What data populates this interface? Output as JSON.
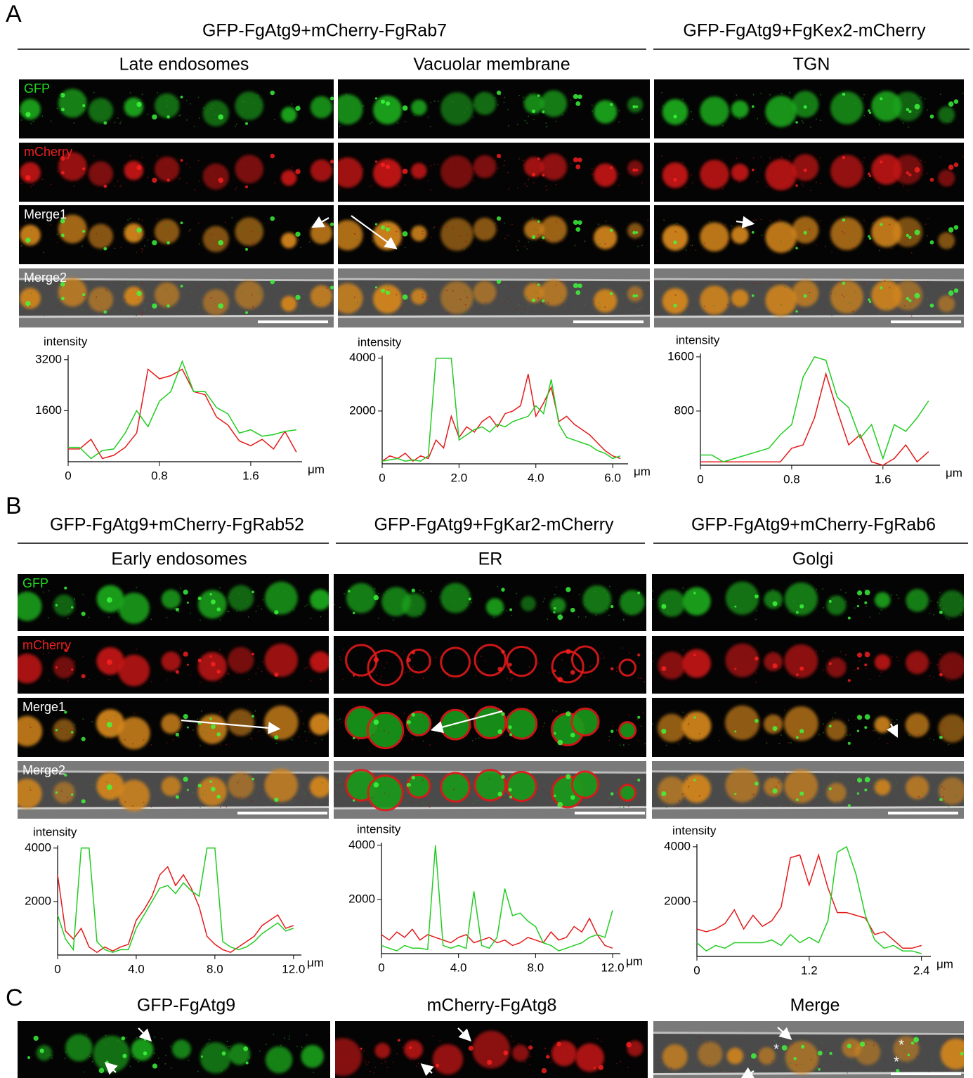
{
  "panels": [
    {
      "label": "A",
      "groups": [
        {
          "title": "GFP-FgAtg9+mCherry-FgRab7"
        },
        {
          "title": "GFP-FgAtg9+FgKex2-mCherry"
        }
      ],
      "columns": [
        "Late endosomes",
        "Vacuolar membrane",
        "TGN"
      ],
      "channels": [
        "GFP",
        "mCherry",
        "Merge1",
        "Merge2"
      ]
    },
    {
      "label": "B",
      "groups": [
        {
          "title": "GFP-FgAtg9+mCherry-FgRab52"
        },
        {
          "title": "GFP-FgAtg9+FgKar2-mCherry"
        },
        {
          "title": "GFP-FgAtg9+mCherry-FgRab6"
        }
      ],
      "columns": [
        "Early endosomes",
        "ER",
        "Golgi"
      ],
      "channels": [
        "GFP",
        "mCherry",
        "Merge1",
        "Merge2"
      ]
    },
    {
      "label": "C",
      "columns": [
        "GFP-FgAtg9",
        "mCherry-FgAtg8",
        "Merge"
      ],
      "asterisks": [
        "*",
        "*",
        "*"
      ]
    }
  ],
  "chart_data": [
    {
      "type": "line",
      "y_label": "intensity",
      "x_label": "μm",
      "x": [
        0,
        0.1,
        0.2,
        0.3,
        0.4,
        0.5,
        0.6,
        0.7,
        0.8,
        0.9,
        1.0,
        1.1,
        1.2,
        1.3,
        1.4,
        1.5,
        1.6,
        1.7,
        1.8,
        1.9,
        2.0
      ],
      "series": [
        {
          "color": "#e41a1a",
          "values": [
            400,
            400,
            700,
            100,
            200,
            450,
            900,
            2900,
            2600,
            2700,
            2900,
            2200,
            2100,
            1400,
            1150,
            650,
            500,
            700,
            400,
            950,
            300
          ]
        },
        {
          "color": "#22cc22",
          "values": [
            450,
            450,
            100,
            350,
            400,
            900,
            1600,
            1100,
            1900,
            2200,
            3150,
            2200,
            2200,
            1700,
            1500,
            900,
            1000,
            800,
            850,
            950,
            1000
          ]
        }
      ],
      "xlim": [
        0,
        2.05
      ],
      "ylim": [
        0,
        3350
      ],
      "xticks": [
        0,
        0.8,
        1.6
      ],
      "yticks": [
        1600,
        3200
      ]
    },
    {
      "type": "line",
      "y_label": "intensity",
      "x_label": "μm",
      "x": [
        0,
        0.2,
        0.4,
        0.6,
        0.8,
        1.0,
        1.2,
        1.4,
        1.6,
        1.8,
        2.0,
        2.2,
        2.4,
        2.6,
        2.8,
        3.0,
        3.2,
        3.4,
        3.6,
        3.8,
        4.0,
        4.2,
        4.4,
        4.6,
        4.8,
        5.0,
        5.2,
        5.4,
        5.6,
        5.8,
        6.0,
        6.2
      ],
      "series": [
        {
          "color": "#e41a1a",
          "values": [
            100,
            300,
            200,
            400,
            100,
            300,
            200,
            900,
            600,
            1800,
            1000,
            1400,
            1200,
            1600,
            1800,
            1400,
            1900,
            2000,
            2200,
            3400,
            1800,
            2300,
            2900,
            1600,
            1800,
            1500,
            1300,
            1100,
            800,
            500,
            300,
            200
          ]
        },
        {
          "color": "#22cc22",
          "values": [
            100,
            150,
            200,
            100,
            150,
            100,
            300,
            4000,
            4000,
            4000,
            900,
            1100,
            1300,
            1400,
            1200,
            1500,
            1400,
            1600,
            1700,
            1800,
            2200,
            1900,
            3200,
            1500,
            1000,
            900,
            800,
            700,
            500,
            400,
            200,
            300
          ]
        }
      ],
      "xlim": [
        0,
        6.4
      ],
      "ylim": [
        0,
        4100
      ],
      "xticks": [
        0,
        {
          "value": 2,
          "label": "2.0"
        },
        {
          "value": 4,
          "label": "4.0"
        },
        {
          "value": 6,
          "label": "6.0"
        }
      ],
      "yticks": [
        2000,
        4000
      ]
    },
    {
      "type": "line",
      "y_label": "intensity",
      "x_label": "μm",
      "x": [
        0,
        0.1,
        0.2,
        0.3,
        0.4,
        0.5,
        0.6,
        0.7,
        0.8,
        0.9,
        1.0,
        1.1,
        1.2,
        1.3,
        1.4,
        1.5,
        1.6,
        1.7,
        1.8,
        1.9,
        2.0
      ],
      "series": [
        {
          "color": "#e41a1a",
          "values": [
            50,
            50,
            50,
            50,
            50,
            50,
            50,
            50,
            250,
            300,
            700,
            1350,
            800,
            300,
            450,
            50,
            0,
            100,
            300,
            50,
            200
          ]
        },
        {
          "color": "#22cc22",
          "values": [
            150,
            150,
            50,
            100,
            150,
            200,
            250,
            450,
            600,
            1300,
            1600,
            1550,
            1000,
            850,
            400,
            600,
            100,
            600,
            500,
            700,
            950
          ]
        }
      ],
      "xlim": [
        0,
        2.1
      ],
      "ylim": [
        0,
        1650
      ],
      "xticks": [
        0,
        0.8,
        1.6
      ],
      "yticks": [
        800,
        1600
      ]
    },
    {
      "type": "line",
      "y_label": "intensity",
      "x_label": "μm",
      "x": [
        0,
        0.4,
        0.8,
        1.2,
        1.6,
        2.0,
        2.4,
        2.8,
        3.2,
        3.6,
        4.0,
        4.4,
        4.8,
        5.2,
        5.6,
        6.0,
        6.4,
        6.8,
        7.2,
        7.6,
        8.0,
        8.4,
        8.8,
        9.2,
        9.6,
        10.0,
        10.4,
        10.8,
        11.2,
        11.6,
        12.0
      ],
      "series": [
        {
          "color": "#e41a1a",
          "values": [
            3000,
            900,
            600,
            1000,
            300,
            100,
            300,
            150,
            300,
            400,
            1300,
            1700,
            2200,
            3000,
            3300,
            2600,
            3000,
            2500,
            1800,
            700,
            400,
            200,
            100,
            300,
            500,
            700,
            1100,
            1300,
            1500,
            1000,
            1100
          ]
        },
        {
          "color": "#22cc22",
          "values": [
            1500,
            600,
            200,
            4000,
            4000,
            500,
            200,
            100,
            200,
            200,
            1000,
            1500,
            2000,
            2500,
            2600,
            2300,
            2700,
            2400,
            2200,
            4000,
            4000,
            500,
            300,
            200,
            300,
            500,
            800,
            1000,
            1200,
            900,
            1000
          ]
        }
      ],
      "xlim": [
        0,
        12.4
      ],
      "ylim": [
        0,
        4100
      ],
      "xticks": [
        0,
        {
          "value": 4,
          "label": "4.0"
        },
        {
          "value": 8,
          "label": "8.0"
        },
        {
          "value": 12,
          "label": "12.0"
        }
      ],
      "yticks": [
        2000,
        4000
      ]
    },
    {
      "type": "line",
      "y_label": "intensity",
      "x_label": "μm",
      "x": [
        0,
        0.4,
        0.8,
        1.2,
        1.6,
        2.0,
        2.4,
        2.8,
        3.2,
        3.6,
        4.0,
        4.4,
        4.8,
        5.2,
        5.6,
        6.0,
        6.4,
        6.8,
        7.2,
        7.6,
        8.0,
        8.4,
        8.8,
        9.2,
        9.6,
        10.0,
        10.4,
        10.8,
        11.2,
        11.6,
        12.0
      ],
      "series": [
        {
          "color": "#e41a1a",
          "values": [
            700,
            500,
            800,
            600,
            900,
            500,
            700,
            600,
            500,
            400,
            600,
            700,
            400,
            500,
            600,
            400,
            500,
            300,
            400,
            600,
            500,
            400,
            800,
            500,
            600,
            1000,
            800,
            1300,
            700,
            300,
            200
          ]
        },
        {
          "color": "#22cc22",
          "values": [
            300,
            200,
            100,
            300,
            200,
            200,
            150,
            4000,
            300,
            200,
            300,
            200,
            2300,
            300,
            200,
            600,
            2400,
            1400,
            1500,
            1200,
            1000,
            400,
            300,
            100,
            200,
            300,
            400,
            600,
            700,
            600,
            1600
          ]
        }
      ],
      "xlim": [
        0,
        12.4
      ],
      "ylim": [
        0,
        4100
      ],
      "xticks": [
        0,
        {
          "value": 4,
          "label": "4.0"
        },
        {
          "value": 8,
          "label": "8.0"
        },
        {
          "value": 12,
          "label": "12.0"
        }
      ],
      "yticks": [
        2000,
        4000
      ]
    },
    {
      "type": "line",
      "y_label": "intensity",
      "x_label": "μm",
      "x": [
        0,
        0.1,
        0.2,
        0.3,
        0.4,
        0.5,
        0.6,
        0.7,
        0.8,
        0.9,
        1.0,
        1.1,
        1.2,
        1.3,
        1.4,
        1.5,
        1.6,
        1.7,
        1.8,
        1.9,
        2.0,
        2.1,
        2.2,
        2.3,
        2.4
      ],
      "series": [
        {
          "color": "#e41a1a",
          "values": [
            1000,
            900,
            1000,
            1200,
            1700,
            1000,
            1500,
            1100,
            1300,
            1800,
            3600,
            3700,
            2600,
            3700,
            2500,
            1600,
            1600,
            1500,
            1400,
            800,
            900,
            600,
            300,
            300,
            400
          ]
        },
        {
          "color": "#22cc22",
          "values": [
            500,
            200,
            400,
            300,
            500,
            500,
            500,
            500,
            600,
            400,
            800,
            500,
            700,
            500,
            1300,
            3800,
            4000,
            3000,
            1500,
            600,
            300,
            400,
            200,
            200,
            100
          ]
        }
      ],
      "xlim": [
        0,
        2.5
      ],
      "ylim": [
        0,
        4100
      ],
      "xticks": [
        0,
        1.2,
        2.4
      ],
      "yticks": [
        2000,
        4000
      ]
    }
  ]
}
